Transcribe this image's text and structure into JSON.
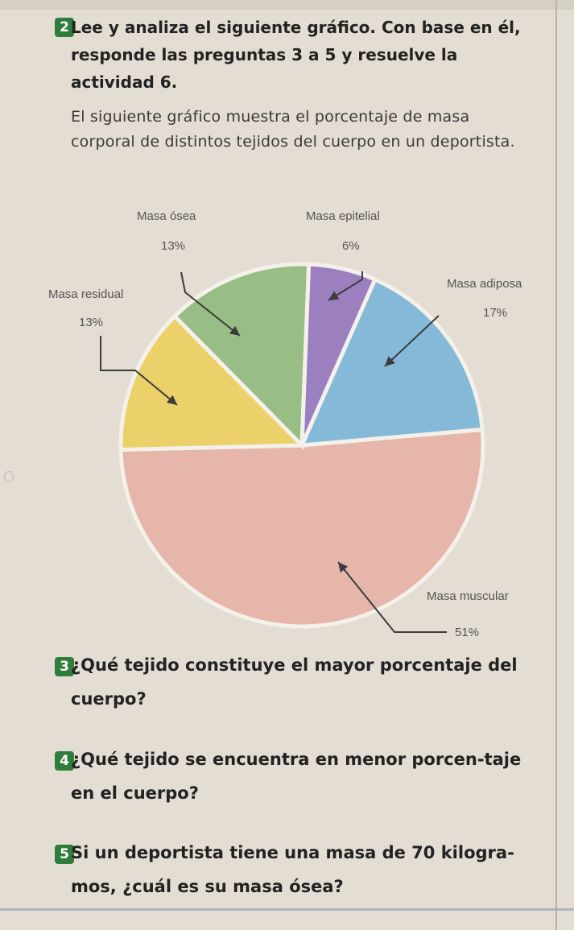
{
  "activity": {
    "number": "2",
    "title": "Lee y analiza el siguiente gráfico. Con base en él, responde las preguntas 3 a 5 y resuelve la actividad 6.",
    "intro": "El siguiente gráfico muestra el porcentaje de masa corporal de distintos tejidos del cuerpo en un deportista."
  },
  "chart_data": {
    "type": "pie",
    "title": "",
    "slices": [
      {
        "name": "Masa muscular",
        "value": 51,
        "label": "51%",
        "color": "#e5b6a9"
      },
      {
        "name": "Masa residual",
        "value": 13,
        "label": "13%",
        "color": "#ecd06a"
      },
      {
        "name": "Masa ósea",
        "value": 13,
        "label": "13%",
        "color": "#98be85"
      },
      {
        "name": "Masa epitelial",
        "value": 6,
        "label": "6%",
        "color": "#9b7fbf"
      },
      {
        "name": "Masa adiposa",
        "value": 17,
        "label": "17%",
        "color": "#85b9d8"
      }
    ]
  },
  "questions": [
    {
      "number": "3",
      "text": "¿Qué tejido constituye el mayor porcentaje del cuerpo?"
    },
    {
      "number": "4",
      "text": "¿Qué tejido se encuentra en menor porcen-taje en el cuerpo?"
    },
    {
      "number": "5",
      "text": "Si un deportista tiene una masa de 70 kilogra-mos, ¿cuál es su masa ósea?"
    }
  ]
}
